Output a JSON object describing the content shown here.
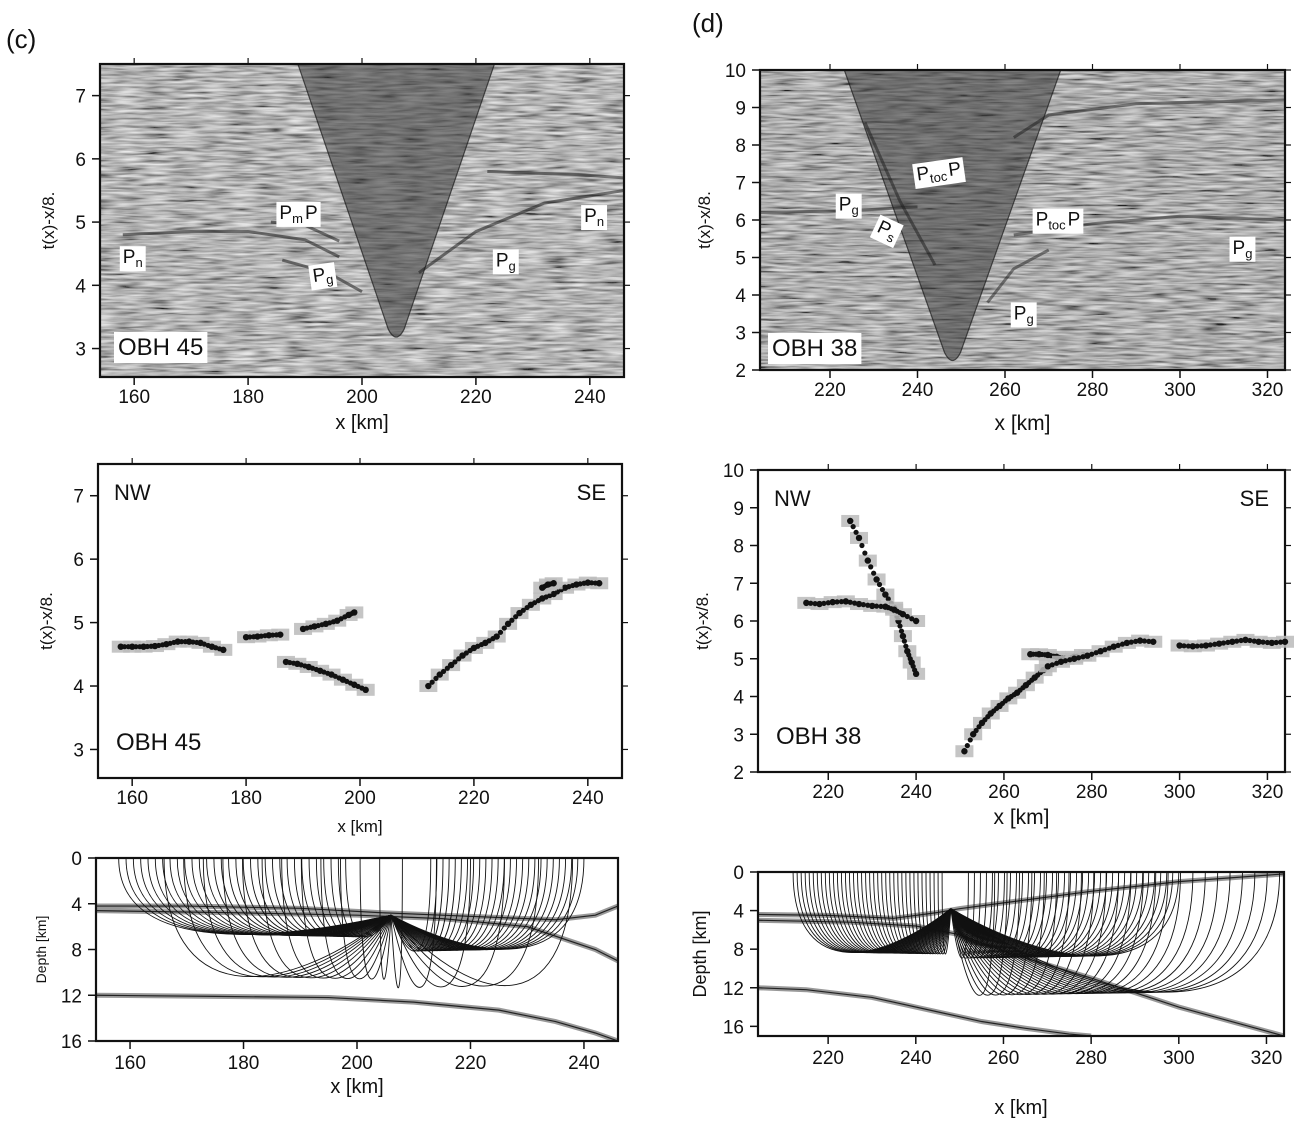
{
  "figure": {
    "label_c": "(c)",
    "label_d": "(d)"
  },
  "chart_data": [
    {
      "id": "c_seis",
      "type": "scatter",
      "panel": "c",
      "xlabel": "x [km]",
      "ylabel": "t(x)-x/8.",
      "xlim": [
        154,
        246
      ],
      "ylim": [
        2.55,
        7.5
      ],
      "xticks": [
        160,
        180,
        200,
        220,
        240
      ],
      "yticks": [
        3,
        4,
        5,
        6,
        7
      ],
      "station": "OBH 45",
      "apex_x": 206,
      "apex_t": 3.15,
      "phase_labels": [
        {
          "base": "P",
          "sub": "n",
          "x": 158,
          "t": 4.35
        },
        {
          "base": "P",
          "sub": "m",
          "post": "P",
          "x": 185.5,
          "t": 5.05
        },
        {
          "base": "P",
          "sub": "g",
          "x": 191.5,
          "t": 4.05,
          "rot": -8
        },
        {
          "base": "P",
          "sub": "g",
          "x": 223.5,
          "t": 4.3
        },
        {
          "base": "P",
          "sub": "n",
          "x": 239,
          "t": 5.0
        }
      ]
    },
    {
      "id": "d_seis",
      "type": "scatter",
      "panel": "d",
      "xlabel": "x [km]",
      "ylabel": "t(x)-x/8.",
      "xlim": [
        204,
        324
      ],
      "ylim": [
        2,
        10
      ],
      "xticks": [
        220,
        240,
        260,
        280,
        300,
        320
      ],
      "yticks": [
        2,
        3,
        4,
        5,
        6,
        7,
        8,
        9,
        10
      ],
      "station": "OBH 38",
      "apex_x": 248,
      "apex_t": 2.2,
      "phase_labels": [
        {
          "base": "P",
          "sub": "g",
          "x": 222,
          "t": 6.25
        },
        {
          "base": "P",
          "sub": "s",
          "x": 230.5,
          "t": 5.7,
          "rot": 25
        },
        {
          "base": "P",
          "sub": "toc",
          "post": "P",
          "x": 240,
          "t": 7.05,
          "rot": -8
        },
        {
          "base": "P",
          "sub": "toc",
          "post": "P",
          "x": 267,
          "t": 5.85
        },
        {
          "base": "P",
          "sub": "g",
          "x": 262,
          "t": 3.35
        },
        {
          "base": "P",
          "sub": "g",
          "x": 312,
          "t": 5.1
        }
      ]
    },
    {
      "id": "c_pick",
      "type": "scatter",
      "panel": "c",
      "xlabel": "x [km]",
      "ylabel": "t(x)-x/8.",
      "xlim": [
        154,
        246
      ],
      "ylim": [
        2.55,
        7.5
      ],
      "xticks": [
        160,
        180,
        200,
        220,
        240
      ],
      "yticks": [
        3,
        4,
        5,
        6,
        7
      ],
      "station": "OBH 45",
      "left_dir": "NW",
      "right_dir": "SE",
      "series": [
        {
          "x": [
            158,
            160,
            162,
            164,
            166,
            168,
            170,
            172,
            174,
            176
          ],
          "y": [
            4.62,
            4.62,
            4.62,
            4.63,
            4.66,
            4.7,
            4.7,
            4.68,
            4.62,
            4.57
          ]
        },
        {
          "x": [
            180,
            182,
            184,
            186
          ],
          "y": [
            4.77,
            4.78,
            4.8,
            4.81
          ]
        },
        {
          "x": [
            190,
            192,
            194,
            196,
            198,
            199
          ],
          "y": [
            4.9,
            4.94,
            4.98,
            5.03,
            5.12,
            5.16
          ]
        },
        {
          "x": [
            187,
            189,
            191,
            193,
            195,
            197,
            199,
            201
          ],
          "y": [
            4.38,
            4.35,
            4.3,
            4.24,
            4.18,
            4.1,
            4.02,
            3.94
          ]
        },
        {
          "x": [
            212,
            214,
            216,
            218,
            220,
            222,
            224,
            226,
            228,
            230,
            232,
            234,
            236,
            238,
            240,
            242
          ],
          "y": [
            4.0,
            4.18,
            4.33,
            4.48,
            4.6,
            4.68,
            4.78,
            4.98,
            5.15,
            5.28,
            5.38,
            5.45,
            5.55,
            5.6,
            5.63,
            5.62
          ]
        },
        {
          "x": [
            232,
            233,
            234
          ],
          "y": [
            5.55,
            5.6,
            5.62
          ]
        }
      ]
    },
    {
      "id": "d_pick",
      "type": "scatter",
      "panel": "d",
      "xlabel": "x [km]",
      "ylabel": "t(x)-x/8.",
      "xlim": [
        204,
        324
      ],
      "ylim": [
        2,
        10
      ],
      "xticks": [
        220,
        240,
        260,
        280,
        300,
        320
      ],
      "yticks": [
        2,
        3,
        4,
        5,
        6,
        7,
        8,
        9,
        10
      ],
      "station": "OBH 38",
      "left_dir": "NW",
      "right_dir": "SE",
      "series": [
        {
          "x": [
            225,
            227,
            229,
            231,
            233,
            235,
            236,
            237,
            238,
            239,
            240
          ],
          "y": [
            8.65,
            8.2,
            7.6,
            7.1,
            6.7,
            6.35,
            6.0,
            5.6,
            5.2,
            4.9,
            4.6
          ]
        },
        {
          "x": [
            215,
            218,
            221,
            224,
            227,
            230,
            233,
            235,
            237,
            240
          ],
          "y": [
            6.48,
            6.45,
            6.5,
            6.52,
            6.45,
            6.4,
            6.38,
            6.3,
            6.18,
            6.0
          ]
        },
        {
          "x": [
            251,
            253,
            255,
            257,
            259,
            261,
            263,
            265,
            267,
            269
          ],
          "y": [
            2.55,
            3.0,
            3.3,
            3.55,
            3.75,
            3.95,
            4.1,
            4.3,
            4.5,
            4.7
          ]
        },
        {
          "x": [
            266,
            268,
            270,
            272,
            274,
            276,
            278
          ],
          "y": [
            5.12,
            5.12,
            5.1,
            5.05,
            5.0,
            5.05,
            5.1
          ]
        },
        {
          "x": [
            270,
            273,
            276,
            279,
            282,
            285,
            288,
            291,
            294
          ],
          "y": [
            4.8,
            4.92,
            5.0,
            5.08,
            5.2,
            5.32,
            5.42,
            5.48,
            5.45
          ]
        },
        {
          "x": [
            300,
            303,
            306,
            309,
            312,
            315,
            318,
            321,
            324
          ],
          "y": [
            5.35,
            5.33,
            5.35,
            5.4,
            5.45,
            5.5,
            5.45,
            5.42,
            5.45
          ]
        }
      ]
    },
    {
      "id": "c_ray",
      "type": "line",
      "panel": "c",
      "xlabel": "x [km]",
      "ylabel": "Depth [km]",
      "xlim": [
        154,
        246
      ],
      "ylim": [
        16,
        0
      ],
      "xticks": [
        160,
        180,
        200,
        220,
        240
      ],
      "yticks": [
        0,
        4,
        8,
        12,
        16
      ],
      "source": [
        206,
        5
      ],
      "interfaces": [
        {
          "x": [
            154,
            170,
            190,
            205,
            215,
            225,
            235,
            242,
            246
          ],
          "y": [
            4.2,
            4.2,
            4.4,
            4.8,
            5.0,
            5.2,
            5.4,
            5.0,
            4.2
          ]
        },
        {
          "x": [
            154,
            180,
            200,
            215,
            230,
            242,
            246
          ],
          "y": [
            4.6,
            4.8,
            5.0,
            5.3,
            6.0,
            8.0,
            9.0
          ]
        },
        {
          "x": [
            154,
            175,
            195,
            210,
            225,
            235,
            242,
            246
          ],
          "y": [
            12.0,
            12.1,
            12.2,
            12.6,
            13.3,
            14.3,
            15.3,
            16.0
          ]
        }
      ],
      "fans": [
        {
          "x1": 158,
          "x2": 198,
          "depth": 7.5,
          "n": 32
        },
        {
          "x1": 213,
          "x2": 240,
          "depth": 9.2,
          "n": 26
        },
        {
          "x1": 166,
          "x2": 204,
          "depth": 12.5,
          "n": 12
        },
        {
          "x1": 208,
          "x2": 238,
          "depth": 13.5,
          "n": 6
        }
      ]
    },
    {
      "id": "d_ray",
      "type": "line",
      "panel": "d",
      "xlabel": "x [km]",
      "ylabel": "Depth [km]",
      "xlim": [
        204,
        324
      ],
      "ylim": [
        17,
        0
      ],
      "xticks": [
        220,
        240,
        260,
        280,
        300,
        320
      ],
      "yticks": [
        0,
        4,
        8,
        12,
        16
      ],
      "source": [
        248,
        3.8
      ],
      "interfaces": [
        {
          "x": [
            204,
            220,
            235,
            245,
            250,
            260,
            280,
            300,
            324
          ],
          "y": [
            4.4,
            4.5,
            4.8,
            4.2,
            3.8,
            3.2,
            2.0,
            1.0,
            0.2
          ]
        },
        {
          "x": [
            204,
            225,
            240,
            250,
            262,
            280,
            300,
            324
          ],
          "y": [
            5.0,
            5.2,
            5.6,
            6.5,
            8.5,
            11.0,
            14.0,
            17.0
          ]
        },
        {
          "x": [
            204,
            215,
            230,
            245,
            255,
            265,
            275,
            280
          ],
          "y": [
            12.0,
            12.2,
            13.0,
            14.5,
            15.5,
            16.2,
            16.8,
            17.0
          ]
        }
      ],
      "fans": [
        {
          "x1": 212,
          "x2": 246,
          "depth": 9.8,
          "n": 38
        },
        {
          "x1": 252,
          "x2": 300,
          "depth": 10.4,
          "n": 36
        },
        {
          "x1": 258,
          "x2": 323,
          "depth": 15.6,
          "n": 24
        }
      ]
    }
  ]
}
